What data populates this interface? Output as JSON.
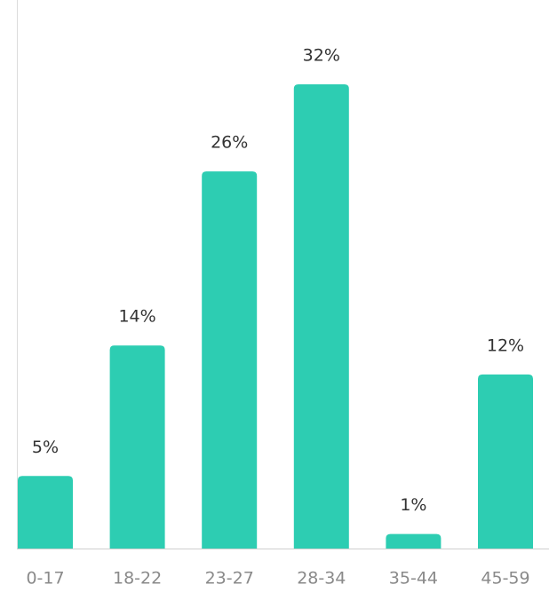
{
  "chart_data": {
    "type": "bar",
    "categories": [
      "0-17",
      "18-22",
      "23-27",
      "28-34",
      "35-44",
      "45-59"
    ],
    "values": [
      5,
      14,
      26,
      32,
      1,
      12
    ],
    "value_labels": [
      "5%",
      "14%",
      "26%",
      "32%",
      "1%",
      "12%"
    ],
    "color": "#2dcdb2"
  }
}
